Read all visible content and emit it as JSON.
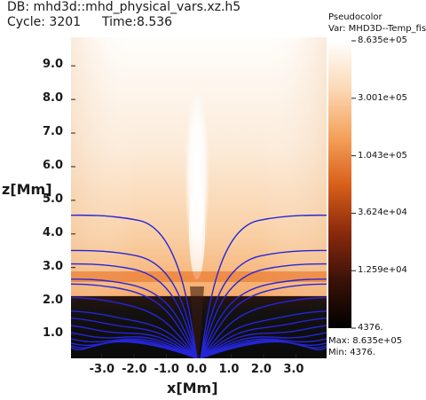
{
  "header": {
    "db": "DB: mhd3d::mhd_physical_vars.xz.h5",
    "cycle": "Cycle: 3201",
    "time": "Time:8.536"
  },
  "legend": {
    "title": "Pseudocolor",
    "var": "Var: MHD3D--Temp_fis",
    "ticks": [
      "8.635e+05",
      "3.001e+05",
      "1.043e+05",
      "3.624e+04",
      "1.259e+04",
      "4376."
    ],
    "max": "Max:  8.635e+05",
    "min": "Min:  4376."
  },
  "chart_data": {
    "type": "heatmap",
    "xlabel": "x[Mm]",
    "ylabel": "z[Mm]",
    "xlim": [
      -3.95,
      3.95
    ],
    "ylim": [
      0.3,
      9.85
    ],
    "x_ticks": [
      "-3.0",
      "-2.0",
      "-1.0",
      "0.0",
      "1.0",
      "2.0",
      "3.0"
    ],
    "y_ticks": [
      "1.0",
      "2.0",
      "3.0",
      "4.0",
      "5.0",
      "6.0",
      "7.0",
      "8.0",
      "9.0"
    ],
    "colorbar": {
      "scale": "log",
      "min": 4376,
      "max": 863500,
      "colors": [
        "#000000",
        "#3a1208",
        "#8a2a0c",
        "#d8601a",
        "#f4a25c",
        "#fbd9b6",
        "#ffffff"
      ]
    },
    "regions": {
      "cool_layer_top_z": 2.15,
      "hot_jet_x": 0.0
    },
    "field_line_color": "#2525d8",
    "field_lines": [
      {
        "x1": 0.25,
        "zmax": 4.4
      },
      {
        "x1": 0.32,
        "zmax": 3.35
      },
      {
        "x1": 0.42,
        "zmax": 2.95
      },
      {
        "x1": 0.55,
        "zmax": 2.5
      },
      {
        "x1": 0.7,
        "zmax": 2.35
      },
      {
        "x1": 0.9,
        "zmax": 1.95
      },
      {
        "x1": 1.1,
        "zmax": 1.55
      },
      {
        "x1": 1.35,
        "zmax": 1.35
      },
      {
        "x1": 1.6,
        "zmax": 1.15
      },
      {
        "x1": 1.9,
        "zmax": 0.98
      },
      {
        "x1": 2.2,
        "zmax": 0.85
      },
      {
        "x1": 2.5,
        "zmax": 0.74
      },
      {
        "x1": 2.8,
        "zmax": 0.66
      },
      {
        "x1": 3.1,
        "zmax": 0.6
      }
    ]
  }
}
